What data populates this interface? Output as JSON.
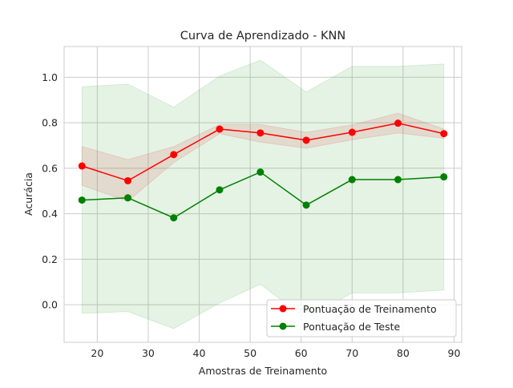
{
  "chart_data": {
    "type": "line",
    "title": "Curva de Aprendizado - KNN",
    "xlabel": "Amostras de Treinamento",
    "ylabel": "Acurácia",
    "xlim": [
      13.5,
      91.5
    ],
    "ylim": [
      -0.165,
      1.135
    ],
    "xticks": [
      20,
      30,
      40,
      50,
      60,
      70,
      80,
      90
    ],
    "yticks": [
      0.0,
      0.2,
      0.4,
      0.6,
      0.8,
      1.0
    ],
    "xtick_labels": [
      "20",
      "30",
      "40",
      "50",
      "60",
      "70",
      "80",
      "90"
    ],
    "ytick_labels": [
      "0.0",
      "0.2",
      "0.4",
      "0.6",
      "0.8",
      "1.0"
    ],
    "grid": true,
    "legend_position": "lower-right",
    "x": [
      17,
      26,
      35,
      44,
      52,
      61,
      70,
      79,
      88
    ],
    "series": [
      {
        "name": "Pontuação de Treinamento",
        "color": "#ff0000",
        "band_color": "#d62728",
        "values": [
          0.61,
          0.545,
          0.66,
          0.772,
          0.755,
          0.723,
          0.758,
          0.798,
          0.752
        ],
        "lower": [
          0.525,
          0.455,
          0.625,
          0.752,
          0.715,
          0.688,
          0.725,
          0.755,
          0.732
        ],
        "upper": [
          0.695,
          0.638,
          0.695,
          0.792,
          0.792,
          0.758,
          0.79,
          0.842,
          0.772
        ]
      },
      {
        "name": "Pontuação de Teste",
        "color": "#008000",
        "band_color": "#2ca02c",
        "values": [
          0.46,
          0.47,
          0.382,
          0.505,
          0.583,
          0.438,
          0.55,
          0.55,
          0.562
        ],
        "lower": [
          -0.038,
          -0.03,
          -0.105,
          0.008,
          0.09,
          -0.06,
          0.052,
          0.052,
          0.065
        ],
        "upper": [
          0.958,
          0.97,
          0.868,
          1.005,
          1.075,
          0.935,
          1.048,
          1.048,
          1.058
        ]
      }
    ]
  }
}
